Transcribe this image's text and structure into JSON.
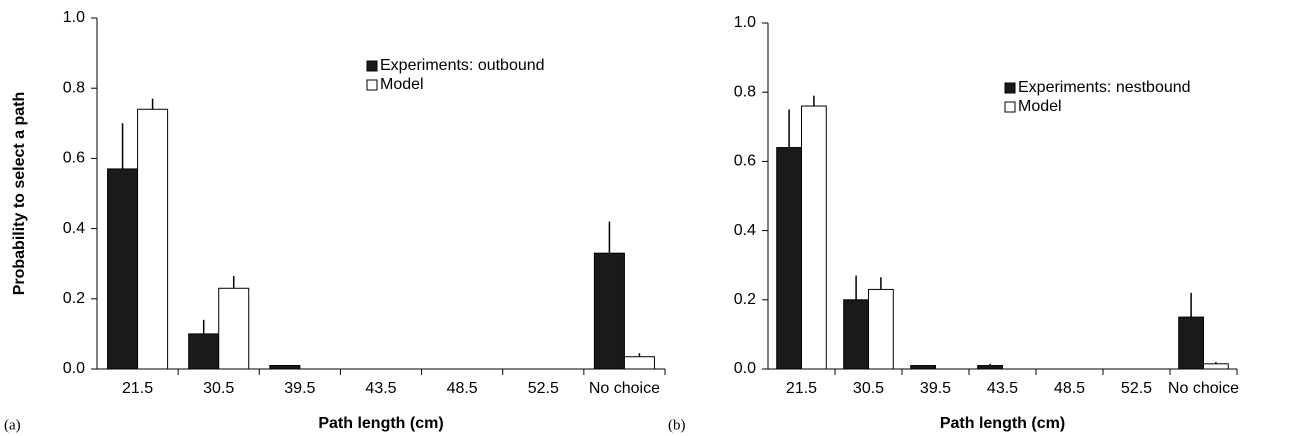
{
  "chart_data": [
    {
      "type": "bar",
      "panel_label": "(a)",
      "xlabel": "Path length (cm)",
      "ylabel": "Probability to select a path",
      "categories": [
        "21.5",
        "30.5",
        "39.5",
        "43.5",
        "48.5",
        "52.5",
        "No choice"
      ],
      "series": [
        {
          "name": "Experiments: outbound",
          "color": "#1a1a1a",
          "values": [
            0.57,
            0.1,
            0.01,
            0,
            0,
            0,
            0.33
          ],
          "errors": [
            0.13,
            0.04,
            0,
            0,
            0,
            0,
            0.09
          ]
        },
        {
          "name": "Model",
          "color": "#ffffff",
          "values": [
            0.74,
            0.23,
            0,
            0,
            0,
            0,
            0.035
          ],
          "errors": [
            0.03,
            0.035,
            0,
            0,
            0,
            0,
            0.01
          ]
        }
      ],
      "ylim": [
        0,
        1.0
      ],
      "yticks": [
        {
          "value": 0,
          "label": "0.0"
        },
        {
          "value": 0.2,
          "label": "0.2"
        },
        {
          "value": 0.4,
          "label": "0.4"
        },
        {
          "value": 0.6,
          "label": "0.6"
        },
        {
          "value": 0.8,
          "label": "0.8"
        },
        {
          "value": 1.0,
          "label": "1.0"
        }
      ],
      "legend": "upper right"
    },
    {
      "type": "bar",
      "panel_label": "(b)",
      "xlabel": "Path length (cm)",
      "categories": [
        "21.5",
        "30.5",
        "39.5",
        "43.5",
        "48.5",
        "52.5",
        "No choice"
      ],
      "series": [
        {
          "name": "Experiments: nestbound",
          "color": "#1a1a1a",
          "values": [
            0.64,
            0.2,
            0.01,
            0.01,
            0,
            0,
            0.15
          ],
          "errors": [
            0.11,
            0.07,
            0,
            0.005,
            0,
            0,
            0.07
          ]
        },
        {
          "name": "Model",
          "color": "#ffffff",
          "values": [
            0.76,
            0.23,
            0,
            0,
            0,
            0,
            0.015
          ],
          "errors": [
            0.03,
            0.035,
            0,
            0,
            0,
            0,
            0.005
          ]
        }
      ],
      "ylim": [
        0,
        1.0
      ],
      "yticks": [
        {
          "value": 0,
          "label": "0.0"
        },
        {
          "value": 0.2,
          "label": "0.2"
        },
        {
          "value": 0.4,
          "label": "0.4"
        },
        {
          "value": 0.6,
          "label": "0.6"
        },
        {
          "value": 0.8,
          "label": "0.8"
        },
        {
          "value": 1.0,
          "label": "1.0"
        }
      ],
      "legend": "upper right"
    }
  ]
}
